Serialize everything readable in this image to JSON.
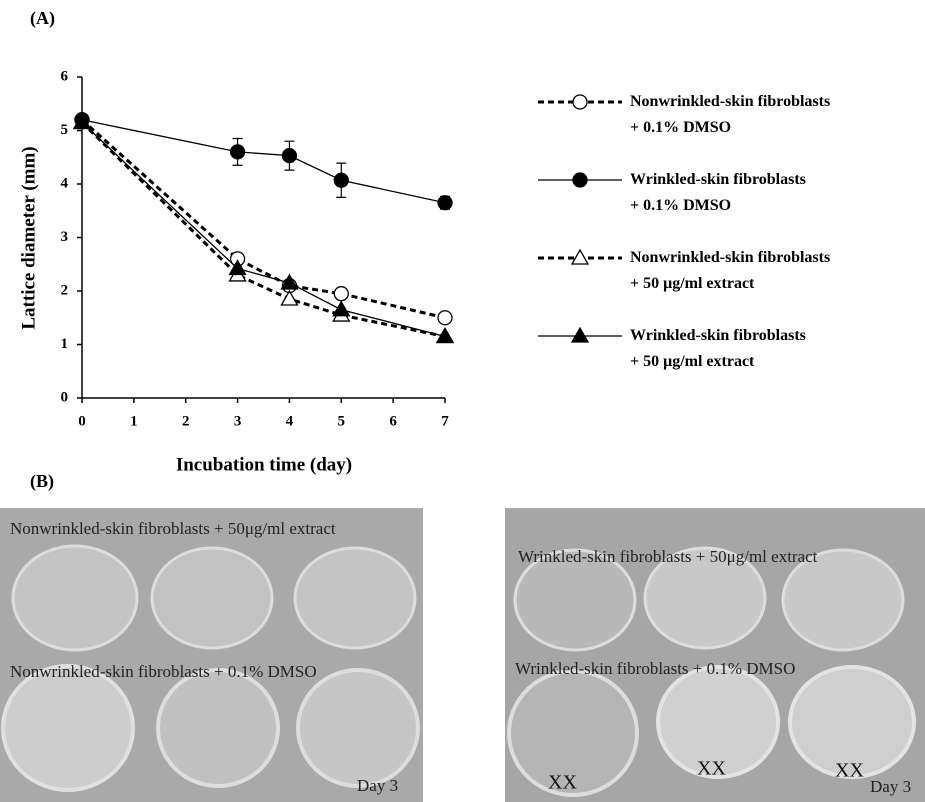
{
  "panel_labels": [
    "(A)",
    "(B)"
  ],
  "chart_data": {
    "type": "line",
    "x_label": "Incubation time (day)",
    "y_label": "Lattice diameter (mm)",
    "x": [
      0,
      3,
      4,
      5,
      7
    ],
    "xlim": [
      0,
      7
    ],
    "xticks": [
      0,
      1,
      2,
      3,
      4,
      5,
      6,
      7
    ],
    "ylim": [
      0,
      6
    ],
    "yticks": [
      0,
      1,
      2,
      3,
      4,
      5,
      6
    ],
    "series": [
      {
        "name": "Nonwrinkled-skin fibroblasts\n+ 0.1% DMSO",
        "color": "#000000",
        "marker": "circle",
        "filled": false,
        "linestyle": "dashed",
        "values": [
          5.2,
          2.6,
          2.1,
          1.95,
          1.5
        ]
      },
      {
        "name": "Wrinkled-skin fibroblasts\n+ 0.1% DMSO",
        "color": "#000000",
        "marker": "circle",
        "filled": true,
        "linestyle": "solid",
        "values": [
          5.2,
          4.6,
          4.53,
          4.07,
          3.65
        ],
        "errors": [
          0.08,
          0.25,
          0.27,
          0.32,
          0.12
        ]
      },
      {
        "name": "Nonwrinkled-skin fibroblasts\n+ 50 μg/ml extract",
        "color": "#000000",
        "marker": "triangle",
        "filled": false,
        "linestyle": "dashed",
        "values": [
          5.15,
          2.3,
          1.85,
          1.55,
          1.15
        ]
      },
      {
        "name": "Wrinkled-skin fibroblasts\n+ 50 μg/ml extract",
        "color": "#000000",
        "marker": "triangle",
        "filled": true,
        "linestyle": "solid",
        "values": [
          5.15,
          2.42,
          2.15,
          1.65,
          1.15
        ]
      }
    ]
  },
  "photos": [
    {
      "top_label": "Nonwrinkled-skin fibroblasts + 50μg/ml extract",
      "bottom_label": "Nonwrinkled-skin fibroblasts + 0.1% DMSO",
      "day": "Day 3"
    },
    {
      "top_label": "Wrinkled-skin fibroblasts + 50μg/ml extract",
      "bottom_label": "Wrinkled-skin fibroblasts + 0.1% DMSO",
      "day": "Day 3",
      "marks": [
        "XX",
        "XX",
        "XX"
      ]
    }
  ]
}
